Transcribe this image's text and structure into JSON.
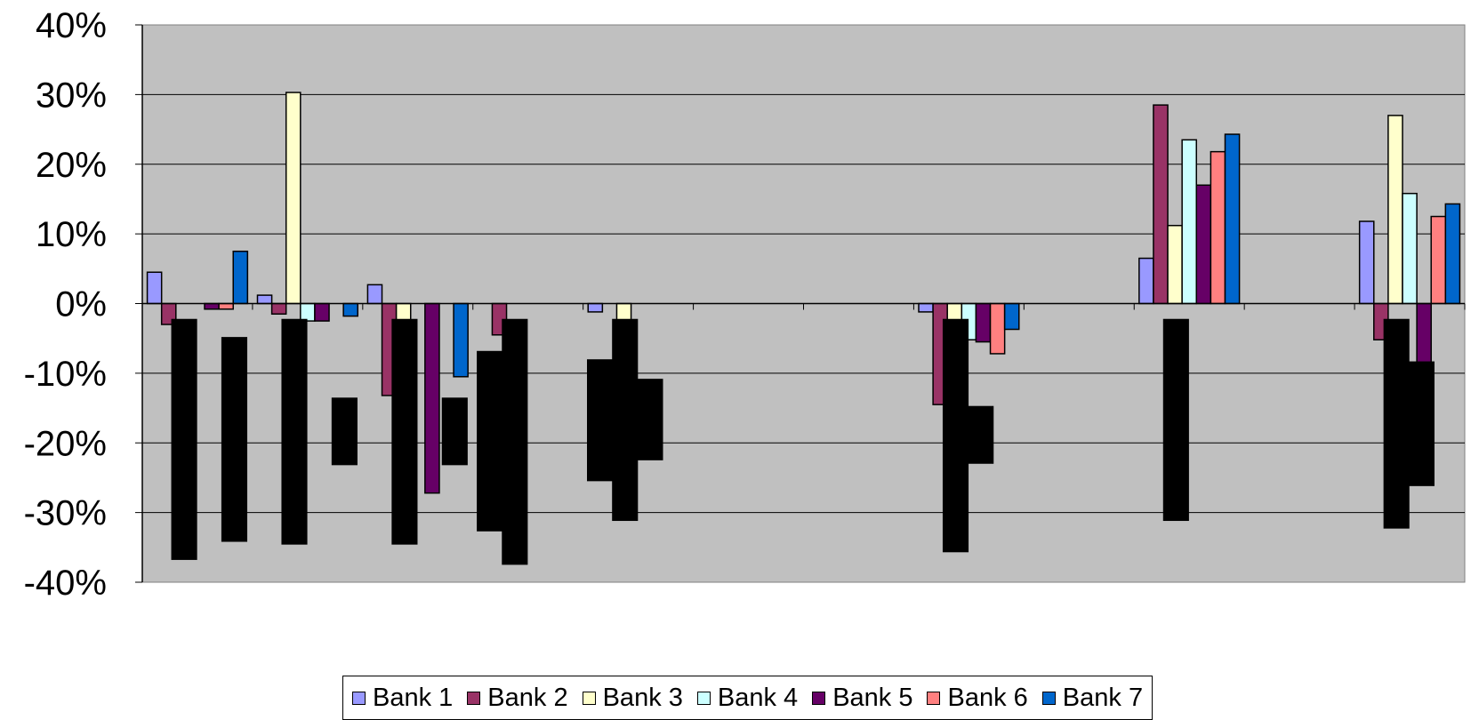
{
  "chart_data": {
    "type": "bar",
    "title": "",
    "xlabel": "",
    "ylabel": "",
    "ylim": [
      -0.4,
      0.4
    ],
    "yticks": [
      0.4,
      0.3,
      0.2,
      0.1,
      0.0,
      -0.1,
      -0.2,
      -0.3,
      -0.4
    ],
    "ytick_labels": [
      "40%",
      "30%",
      "20%",
      "10%",
      "0%",
      "-10%",
      "-20%",
      "-30%",
      "-40%"
    ],
    "grid": true,
    "plot_background": "#C0C0C0",
    "legend_position": "bottom",
    "categories": [
      "",
      "",
      "",
      "",
      "",
      "",
      "",
      "",
      "",
      "",
      "",
      ""
    ],
    "series": [
      {
        "name": "Bank 1",
        "color": "#9999FF",
        "values": [
          0.045,
          0.012,
          0.027,
          null,
          -0.012,
          null,
          null,
          -0.012,
          null,
          0.065,
          null,
          0.118
        ]
      },
      {
        "name": "Bank 2",
        "color": "#993366",
        "values": [
          -0.03,
          -0.015,
          -0.132,
          -0.045,
          null,
          null,
          null,
          -0.145,
          null,
          0.285,
          null,
          -0.052
        ]
      },
      {
        "name": "Bank 3",
        "color": "#FFFFCC",
        "values": [
          null,
          0.303,
          -0.085,
          null,
          -0.063,
          null,
          null,
          -0.065,
          null,
          0.112,
          null,
          0.27
        ]
      },
      {
        "name": "Bank 4",
        "color": "#CCFFFF",
        "values": [
          null,
          -0.025,
          null,
          null,
          null,
          null,
          null,
          -0.052,
          null,
          0.235,
          null,
          0.158
        ]
      },
      {
        "name": "Bank 5",
        "color": "#660066",
        "values": [
          -0.008,
          -0.025,
          -0.272,
          null,
          null,
          null,
          null,
          -0.055,
          null,
          0.17,
          null,
          -0.085
        ]
      },
      {
        "name": "Bank 6",
        "color": "#FF8080",
        "values": [
          -0.008,
          null,
          null,
          null,
          null,
          null,
          null,
          -0.072,
          null,
          0.218,
          null,
          0.125
        ]
      },
      {
        "name": "Bank 7",
        "color": "#0066CC",
        "values": [
          0.075,
          -0.018,
          -0.105,
          null,
          null,
          null,
          null,
          -0.037,
          null,
          0.243,
          null,
          0.143
        ]
      }
    ],
    "redaction_blocks": [
      {
        "category": 0,
        "slot": 1,
        "from": -0.022,
        "to": -0.368
      },
      {
        "category": 0,
        "slot": 3,
        "from": -0.048,
        "to": -0.342
      },
      {
        "category": 1,
        "slot": 1,
        "from": -0.022,
        "to": -0.346
      },
      {
        "category": 1,
        "slot": 3,
        "from": -0.135,
        "to": -0.232
      },
      {
        "category": 2,
        "slot": 1,
        "from": -0.022,
        "to": -0.346
      },
      {
        "category": 2,
        "slot": 3,
        "from": -0.135,
        "to": -0.232
      },
      {
        "category": 3,
        "slot": 0,
        "from": -0.068,
        "to": -0.327
      },
      {
        "category": 3,
        "slot": 1,
        "from": -0.022,
        "to": -0.375
      },
      {
        "category": 4,
        "slot": 0,
        "from": -0.08,
        "to": -0.255
      },
      {
        "category": 4,
        "slot": 1,
        "from": -0.022,
        "to": -0.312
      },
      {
        "category": 4,
        "slot": 2,
        "from": -0.108,
        "to": -0.225
      },
      {
        "category": 7,
        "slot": 1,
        "from": -0.022,
        "to": -0.357
      },
      {
        "category": 7,
        "slot": 2,
        "from": -0.147,
        "to": -0.23
      },
      {
        "category": 9,
        "slot": 1,
        "from": -0.022,
        "to": -0.312
      },
      {
        "category": 11,
        "slot": 1,
        "from": -0.022,
        "to": -0.323
      },
      {
        "category": 11,
        "slot": 2,
        "from": -0.083,
        "to": -0.262
      }
    ]
  }
}
